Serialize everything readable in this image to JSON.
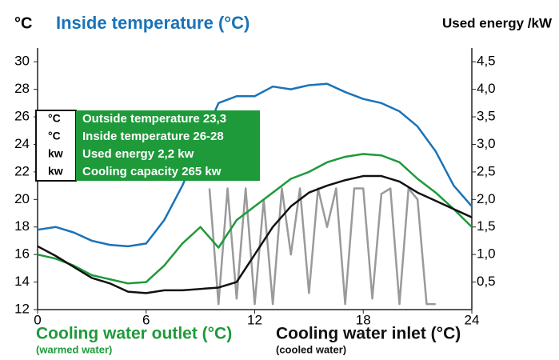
{
  "chart_data": {
    "type": "line",
    "title": "Inside temperature (°C)",
    "y_unit": "°C",
    "y2_label": "Used energy /kW",
    "x": [
      0,
      1,
      2,
      3,
      4,
      5,
      6,
      7,
      8,
      9,
      10,
      11,
      12,
      13,
      14,
      15,
      16,
      17,
      18,
      19,
      20,
      21,
      22,
      23,
      24
    ],
    "xlim": [
      0,
      24
    ],
    "xticks": [
      0,
      6,
      12,
      18,
      24
    ],
    "ylim": [
      12,
      31
    ],
    "yticks": [
      12,
      14,
      16,
      18,
      20,
      22,
      24,
      26,
      28,
      30
    ],
    "y2lim": [
      0,
      4.75
    ],
    "y2ticks": [
      {
        "value": 0.5,
        "label": "0,5"
      },
      {
        "value": 1.0,
        "label": "1,0"
      },
      {
        "value": 1.5,
        "label": "1,5"
      },
      {
        "value": 2.0,
        "label": "2,0"
      },
      {
        "value": 2.5,
        "label": "2,5"
      },
      {
        "value": 3.0,
        "label": "3,0"
      },
      {
        "value": 3.5,
        "label": "3,5"
      },
      {
        "value": 4.0,
        "label": "4,0"
      },
      {
        "value": 4.5,
        "label": "4,5"
      }
    ],
    "series": [
      {
        "name": "Inside temperature (°C)",
        "color": "#1a73b8",
        "values": [
          17.8,
          18.0,
          17.6,
          17.0,
          16.7,
          16.6,
          16.8,
          18.5,
          21.0,
          24.0,
          27.0,
          27.5,
          27.5,
          28.2,
          28.0,
          28.3,
          28.4,
          27.8,
          27.3,
          27.0,
          26.4,
          25.3,
          23.5,
          21.0,
          19.5
        ]
      },
      {
        "name": "Cooling water outlet (°C)",
        "color": "#1e9a3a",
        "note": "(warmed water)",
        "values": [
          16.0,
          15.7,
          15.2,
          14.5,
          14.2,
          13.9,
          14.0,
          15.2,
          16.8,
          18.0,
          16.5,
          18.5,
          19.5,
          20.5,
          21.5,
          22.0,
          22.7,
          23.1,
          23.3,
          23.2,
          22.7,
          21.5,
          20.5,
          19.3,
          18.0
        ]
      },
      {
        "name": "Cooling water inlet (°C)",
        "color": "#111111",
        "note": "(cooled water)",
        "values": [
          16.6,
          15.9,
          15.1,
          14.3,
          13.9,
          13.3,
          13.2,
          13.4,
          13.4,
          13.5,
          13.6,
          14.0,
          16.0,
          18.0,
          19.5,
          20.5,
          21.0,
          21.4,
          21.7,
          21.7,
          21.3,
          20.5,
          19.9,
          19.3,
          18.7
        ]
      },
      {
        "name": "Used energy /kW",
        "color": "#9a9a9a",
        "axis": "y2",
        "x": [
          9.5,
          10,
          10.5,
          11,
          11.5,
          12,
          12.5,
          13,
          13.5,
          14,
          14.5,
          15,
          15.5,
          16,
          16.5,
          17,
          17.5,
          18,
          18.5,
          19,
          19.5,
          20,
          20.5,
          21,
          21.5,
          22
        ],
        "values": [
          2.2,
          0.1,
          2.2,
          0.2,
          2.2,
          0.1,
          2.0,
          0.1,
          2.2,
          1.0,
          2.2,
          0.3,
          2.2,
          1.5,
          2.2,
          0.1,
          2.2,
          2.2,
          0.2,
          2.1,
          2.2,
          0.1,
          2.2,
          2.0,
          0.1,
          0.1
        ]
      }
    ],
    "legend_box": [
      {
        "unit": "°C",
        "text": "Outside temperature 23,3"
      },
      {
        "unit": "°C",
        "text": "Inside temperature 26-28"
      },
      {
        "unit": "kw",
        "text": "Used energy 2,2 kw"
      },
      {
        "unit": "kw",
        "text": "Cooling capacity 265 kw"
      }
    ]
  }
}
